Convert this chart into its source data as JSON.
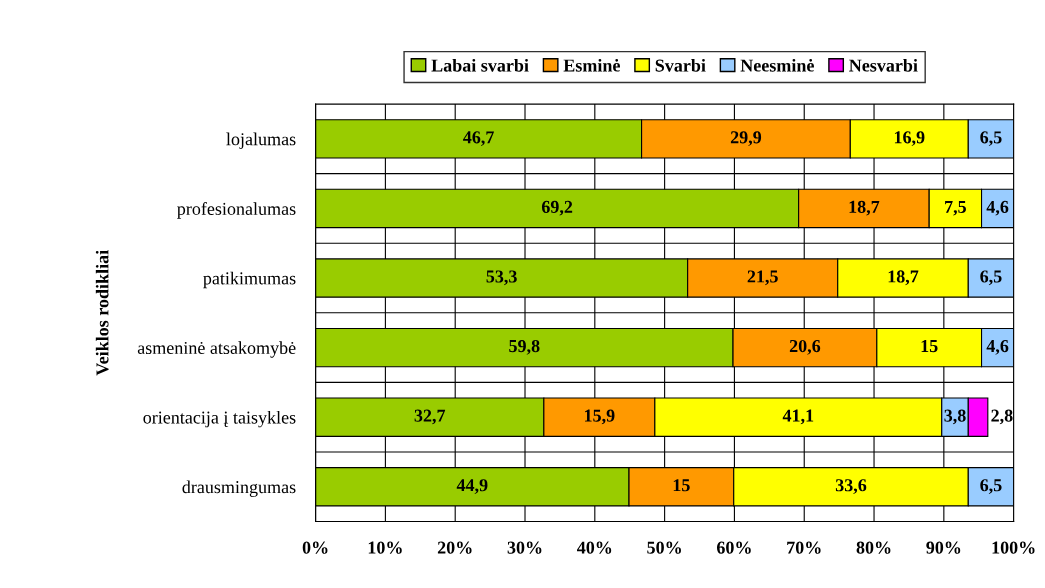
{
  "chart_data": {
    "type": "bar",
    "orientation": "horizontal",
    "stacked": true,
    "ylabel": "Veiklos rodikliai",
    "categories": [
      "lojalumas",
      "profesionalumas",
      "patikimumas",
      "asmeninė atsakomybė",
      "orientacija į taisykles",
      "drausmingumas"
    ],
    "series": [
      {
        "name": "Labai svarbi",
        "color": "#99cc00",
        "values": [
          46.7,
          69.2,
          53.3,
          59.8,
          32.7,
          44.9
        ],
        "value_labels": [
          "46,7",
          "69,2",
          "53,3",
          "59,8",
          "32,7",
          "44,9"
        ]
      },
      {
        "name": "Esminė",
        "color": "#ff9900",
        "values": [
          29.9,
          18.7,
          21.5,
          20.6,
          15.9,
          15
        ],
        "value_labels": [
          "29,9",
          "18,7",
          "21,5",
          "20,6",
          "15,9",
          "15"
        ]
      },
      {
        "name": "Svarbi",
        "color": "#ffff00",
        "values": [
          16.9,
          7.5,
          18.7,
          15,
          41.1,
          33.6
        ],
        "value_labels": [
          "16,9",
          "7,5",
          "18,7",
          "15",
          "41,1",
          "33,6"
        ]
      },
      {
        "name": "Neesminė",
        "color": "#99ccff",
        "values": [
          6.5,
          4.6,
          6.5,
          4.6,
          3.8,
          6.5
        ],
        "value_labels": [
          "6,5",
          "4,6",
          "6,5",
          "4,6",
          "3,8",
          "6,5"
        ]
      },
      {
        "name": "Nesvarbi",
        "color": "#ff00ff",
        "values": [
          null,
          null,
          null,
          null,
          2.8,
          null
        ],
        "value_labels": [
          null,
          null,
          null,
          null,
          "2,8",
          null
        ]
      }
    ],
    "xlim": [
      0,
      100
    ],
    "xticks": [
      {
        "value": 0,
        "label": "0%"
      },
      {
        "value": 10,
        "label": "10%"
      },
      {
        "value": 20,
        "label": "20%"
      },
      {
        "value": 30,
        "label": "30%"
      },
      {
        "value": 40,
        "label": "40%"
      },
      {
        "value": 50,
        "label": "50%"
      },
      {
        "value": 60,
        "label": "60%"
      },
      {
        "value": 70,
        "label": "70%"
      },
      {
        "value": 80,
        "label": "80%"
      },
      {
        "value": 90,
        "label": "90%"
      },
      {
        "value": 100,
        "label": "100%"
      }
    ],
    "grid": true,
    "legend": "top"
  }
}
